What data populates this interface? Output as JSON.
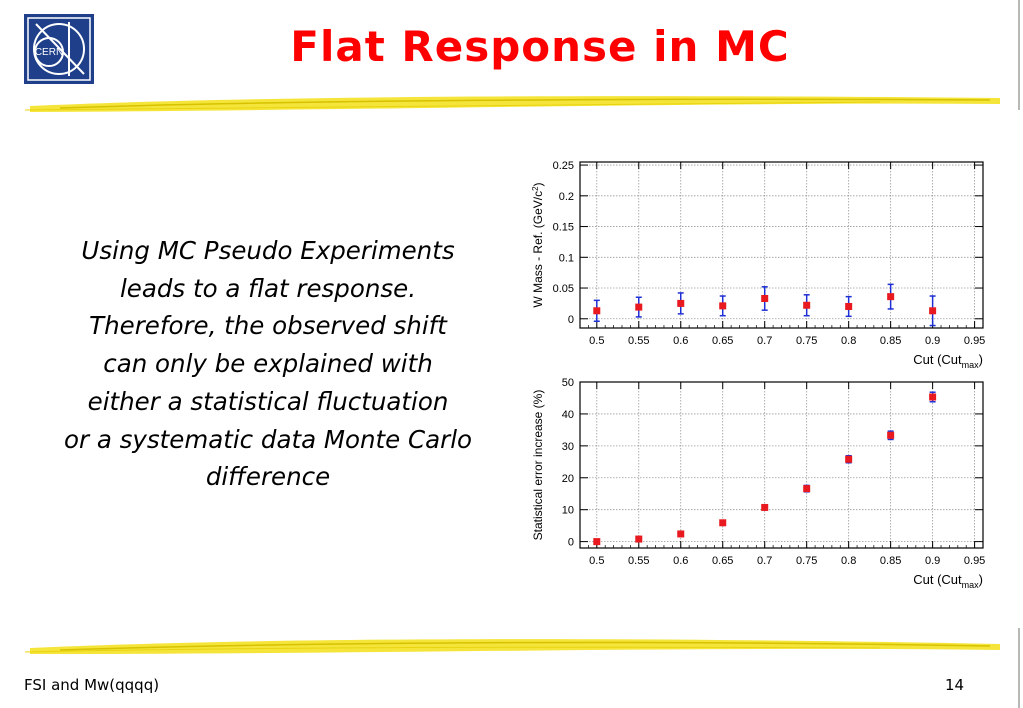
{
  "slide": {
    "title": "Flat Response in MC",
    "body_lines": [
      "Using MC Pseudo Experiments",
      "leads to a flat response.",
      "Therefore, the observed shift",
      "can only be explained with",
      "either a statistical fluctuation",
      "or a systematic data Monte Carlo",
      "difference"
    ],
    "footer_left": "FSI and Mw(qqqq)",
    "page_number": "14",
    "logo_text": "CERN",
    "colors": {
      "title": "#ff0000",
      "marker": "#e8191f",
      "error_bar": "#1f2fd6",
      "stroke": "#f2e21a"
    }
  },
  "chart_data": [
    {
      "type": "scatter",
      "xlabel": "Cut (Cut",
      "xlabel_sub": "max",
      "xlabel_end": ")",
      "ylabel": "W Mass - Ref. (GeV/c",
      "ylabel_sup": "2",
      "ylabel_end": ")",
      "xlim": [
        0.48,
        0.96
      ],
      "ylim": [
        -0.015,
        0.255
      ],
      "xticks": [
        "0.5",
        "0.55",
        "0.6",
        "0.65",
        "0.7",
        "0.75",
        "0.8",
        "0.85",
        "0.9",
        "0.95"
      ],
      "yticks": [
        "0",
        "0.05",
        "0.1",
        "0.15",
        "0.2",
        "0.25"
      ],
      "grid": true,
      "points": [
        {
          "x": 0.5,
          "y": 0.013,
          "err": 0.017
        },
        {
          "x": 0.55,
          "y": 0.019,
          "err": 0.016
        },
        {
          "x": 0.6,
          "y": 0.025,
          "err": 0.017
        },
        {
          "x": 0.65,
          "y": 0.021,
          "err": 0.016
        },
        {
          "x": 0.7,
          "y": 0.033,
          "err": 0.019
        },
        {
          "x": 0.75,
          "y": 0.022,
          "err": 0.017
        },
        {
          "x": 0.8,
          "y": 0.02,
          "err": 0.016
        },
        {
          "x": 0.85,
          "y": 0.036,
          "err": 0.02
        },
        {
          "x": 0.9,
          "y": 0.013,
          "err": 0.024
        }
      ]
    },
    {
      "type": "scatter",
      "xlabel": "Cut (Cut",
      "xlabel_sub": "max",
      "xlabel_end": ")",
      "ylabel": "Statistical error increase (%)",
      "xlim": [
        0.48,
        0.96
      ],
      "ylim": [
        -2,
        50
      ],
      "xticks": [
        "0.5",
        "0.55",
        "0.6",
        "0.65",
        "0.7",
        "0.75",
        "0.8",
        "0.85",
        "0.9",
        "0.95"
      ],
      "yticks": [
        "0",
        "10",
        "20",
        "30",
        "40",
        "50"
      ],
      "grid": true,
      "points": [
        {
          "x": 0.5,
          "y": 0,
          "err": 0.3
        },
        {
          "x": 0.55,
          "y": 0.8,
          "err": 0.3
        },
        {
          "x": 0.6,
          "y": 2.4,
          "err": 0.4
        },
        {
          "x": 0.65,
          "y": 5.9,
          "err": 0.5
        },
        {
          "x": 0.7,
          "y": 10.7,
          "err": 0.6
        },
        {
          "x": 0.75,
          "y": 16.6,
          "err": 1.0
        },
        {
          "x": 0.8,
          "y": 25.8,
          "err": 1.1
        },
        {
          "x": 0.85,
          "y": 33.3,
          "err": 1.3
        },
        {
          "x": 0.9,
          "y": 45.3,
          "err": 1.5
        }
      ]
    }
  ]
}
